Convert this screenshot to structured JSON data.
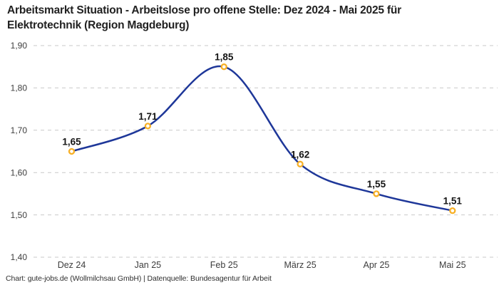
{
  "title": {
    "lines": [
      "Arbeitsmarkt Situation - Arbeitslose pro offene Stelle: Dez 2024 - Mai 2025 für",
      "Elektrotechnik (Region Magdeburg)"
    ]
  },
  "footer": "Chart: gute-jobs.de (Wollmilchsau GmbH) | Datenquelle: Bundesagentur für Arbeit",
  "chart_data": {
    "type": "line",
    "title": "Arbeitsmarkt Situation - Arbeitslose pro offene Stelle: Dez 2024 - Mai 2025 für Elektrotechnik (Region Magdeburg)",
    "categories": [
      "Dez 24",
      "Jan 25",
      "Feb 25",
      "März 25",
      "Apr 25",
      "Mai 25"
    ],
    "values": [
      1.65,
      1.71,
      1.85,
      1.62,
      1.55,
      1.51
    ],
    "point_labels": [
      "1,65",
      "1,71",
      "1,85",
      "1,62",
      "1,55",
      "1,51"
    ],
    "y_tick_values": [
      1.9,
      1.8,
      1.7,
      1.6,
      1.5,
      1.4
    ],
    "y_tick_labels": [
      "1,90",
      "1,80",
      "1,70",
      "1,60",
      "1,50",
      "1,40"
    ],
    "ylim": [
      1.4,
      1.9
    ],
    "xlabel": "",
    "ylabel": "",
    "grid": "horizontal-dashed",
    "legend": "none",
    "smooth": true,
    "colors": {
      "line": "#1e3799",
      "marker_ring": "#f7b026",
      "marker_fill": "#ffffff",
      "gridline": "#c9c9c9",
      "tick_text": "#3d3d3d",
      "data_label": "#141414"
    }
  }
}
